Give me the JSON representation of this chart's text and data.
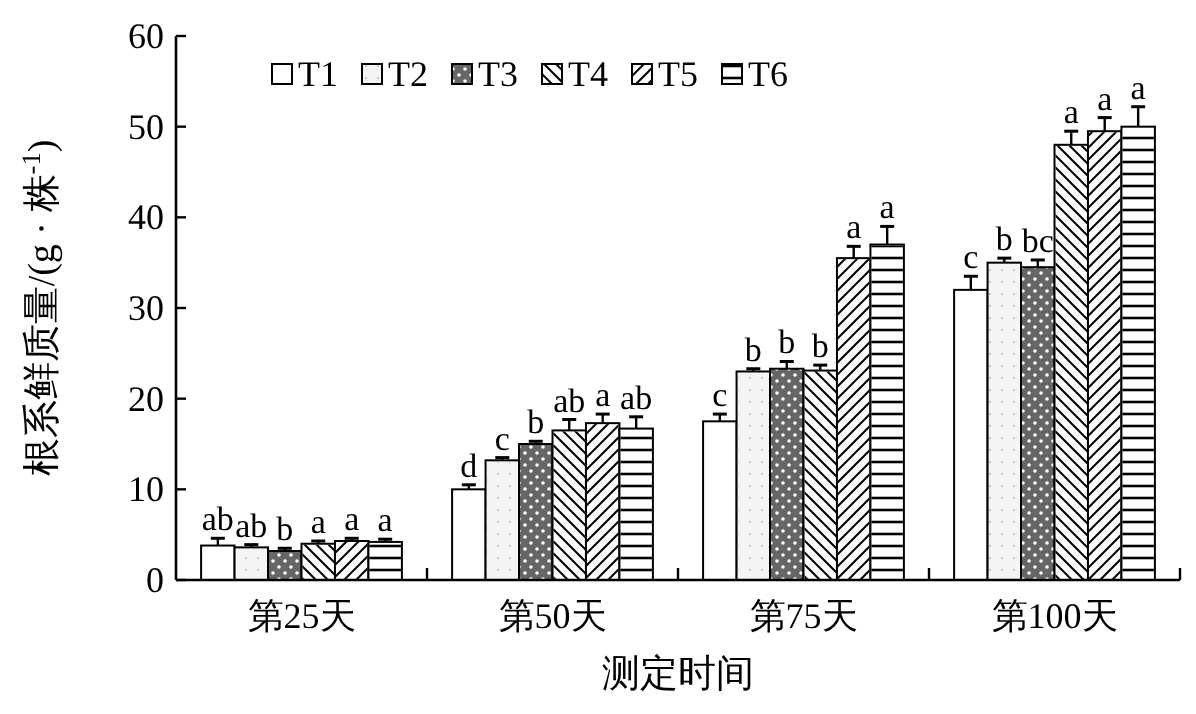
{
  "chart_data": {
    "type": "bar",
    "xlabel": "测定时间",
    "ylabel": "根系鲜质量/(g · 株$^{-1}$)",
    "categories": [
      "第25天",
      "第50天",
      "第75天",
      "第100天"
    ],
    "ylim": [
      0,
      60
    ],
    "yticks": [
      0,
      10,
      20,
      30,
      40,
      50,
      60
    ],
    "grid": false,
    "legend": "top left",
    "series": [
      {
        "name": "T1",
        "color": "#ffffff",
        "values": [
          3.8,
          10,
          17.5,
          32
        ],
        "errors": [
          0.8,
          0.5,
          0.8,
          1.5
        ],
        "value_labels": [
          "ab",
          "d",
          "c",
          "c"
        ]
      },
      {
        "name": "T2",
        "color": "#f4f4f4",
        "values": [
          3.6,
          13.2,
          23,
          35
        ],
        "errors": [
          0.3,
          0.3,
          0.3,
          0.5
        ],
        "value_labels": [
          "ab",
          "c",
          "b",
          "b"
        ]
      },
      {
        "name": "T3",
        "color": "#666666",
        "values": [
          3.2,
          15,
          23.3,
          34.5
        ],
        "errors": [
          0.3,
          0.3,
          0.8,
          0.8
        ],
        "value_labels": [
          "b",
          "b",
          "b",
          "bc"
        ]
      },
      {
        "name": "T4",
        "color": "#ffffff",
        "values": [
          4.0,
          16.5,
          23.1,
          48
        ],
        "errors": [
          0.3,
          1.2,
          0.6,
          1.5
        ],
        "value_labels": [
          "a",
          "ab",
          "b",
          "a"
        ]
      },
      {
        "name": "T5",
        "color": "#ffffff",
        "values": [
          4.3,
          17.3,
          35.5,
          49.5
        ],
        "errors": [
          0.3,
          1.0,
          1.3,
          1.5
        ],
        "value_labels": [
          "a",
          "a",
          "a",
          "a"
        ]
      },
      {
        "name": "T6",
        "color": "#ffffff",
        "values": [
          4.2,
          16.7,
          37,
          50
        ],
        "errors": [
          0.3,
          1.3,
          2.0,
          2.2
        ],
        "value_labels": [
          "a",
          "ab",
          "a",
          "a"
        ]
      }
    ]
  }
}
